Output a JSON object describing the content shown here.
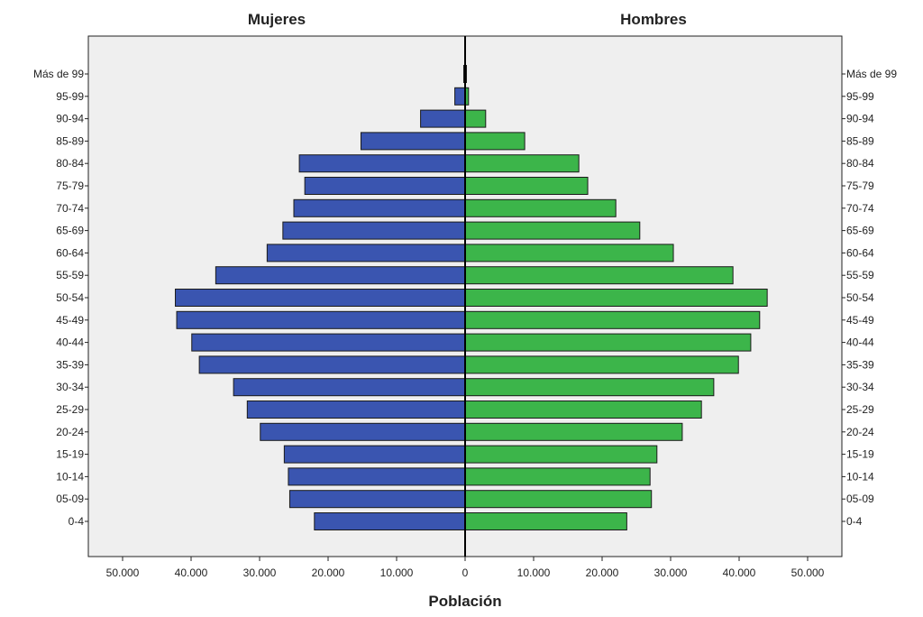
{
  "chart_data": {
    "type": "bar",
    "orientation": "horizontal",
    "layout": "population-pyramid",
    "left_title": "Mujeres",
    "right_title": "Hombres",
    "xlabel": "Población",
    "ylabel": "",
    "xlim": [
      -55000,
      55000
    ],
    "x_ticks": [
      -50000,
      -40000,
      -30000,
      -20000,
      -10000,
      0,
      10000,
      20000,
      30000,
      40000,
      50000
    ],
    "x_tick_labels": [
      "50.000",
      "40.000",
      "30.000",
      "20.000",
      "10.000",
      "0",
      "10.000",
      "20.000",
      "30.000",
      "40.000",
      "50.000"
    ],
    "grid": false,
    "categories": [
      "Más de 99",
      "95-99",
      "90-94",
      "85-89",
      "80-84",
      "75-79",
      "70-74",
      "65-69",
      "60-64",
      "55-59",
      "50-54",
      "45-49",
      "40-44",
      "35-39",
      "30-34",
      "25-29",
      "20-24",
      "15-19",
      "10-14",
      "05-09",
      "0-4"
    ],
    "series": [
      {
        "name": "Mujeres",
        "side": "left",
        "color": "#3a55b0",
        "values": [
          200,
          1500,
          6500,
          15200,
          24200,
          23400,
          25000,
          26600,
          28900,
          36400,
          42300,
          42100,
          39900,
          38800,
          33800,
          31800,
          29900,
          26400,
          25800,
          25600,
          22000
        ]
      },
      {
        "name": "Hombres",
        "side": "right",
        "color": "#3cb54a",
        "values": [
          150,
          500,
          3000,
          8700,
          16600,
          17900,
          22000,
          25500,
          30400,
          39100,
          44100,
          43000,
          41700,
          39900,
          36300,
          34500,
          31700,
          28000,
          27000,
          27200,
          23600
        ]
      }
    ]
  },
  "colors": {
    "plot_background": "#efefef",
    "female_bar": "#3a55b0",
    "male_bar": "#3cb54a"
  }
}
